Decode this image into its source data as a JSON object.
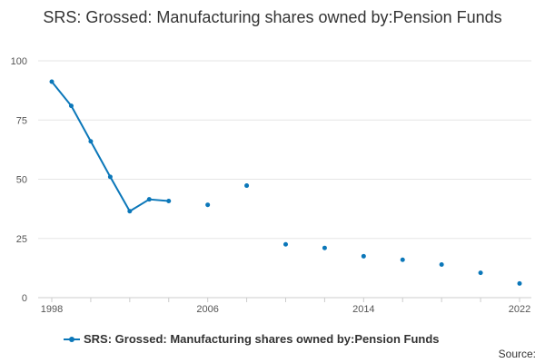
{
  "title": "SRS: Grossed: Manufacturing shares owned by:Pension Funds",
  "legend_label": "SRS: Grossed: Manufacturing shares owned by:Pension Funds",
  "source_label": "Source:",
  "colors": {
    "series": "#0b77b9",
    "grid": "#e6e6e6",
    "axis": "#cccccc"
  },
  "chart_data": {
    "type": "line",
    "title": "SRS: Grossed: Manufacturing shares owned by:Pension Funds",
    "xlabel": "",
    "ylabel": "",
    "xlim": [
      1998,
      2022
    ],
    "ylim": [
      0,
      100
    ],
    "x_ticks": [
      "1998",
      "2006",
      "2014",
      "2022"
    ],
    "y_ticks": [
      "0",
      "25",
      "50",
      "75",
      "100"
    ],
    "grid": true,
    "legend": "bottom",
    "series": [
      {
        "name": "SRS: Grossed: Manufacturing shares owned by:Pension Funds",
        "x": [
          1998,
          1999,
          2000,
          2001,
          2002,
          2003,
          2004,
          2006,
          2008,
          2010,
          2012,
          2014,
          2016,
          2018,
          2020,
          2022
        ],
        "values": [
          91.2,
          81.0,
          66.0,
          51.0,
          36.5,
          41.5,
          40.8,
          39.2,
          47.3,
          22.5,
          21.0,
          17.5,
          16.0,
          14.0,
          10.5,
          6.0
        ]
      }
    ]
  }
}
